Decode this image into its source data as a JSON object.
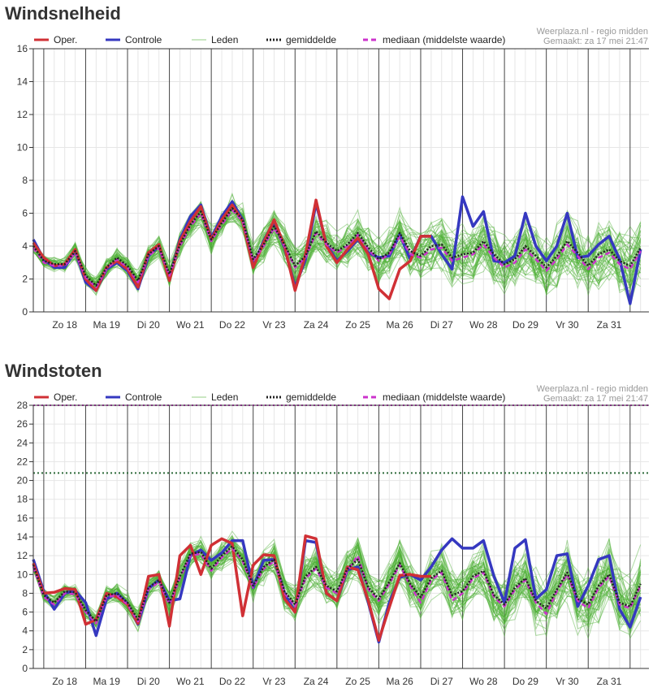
{
  "charts": [
    {
      "title": "Windsnelheid",
      "source": "Weerplaza.nl - regio midden",
      "made": "Gemaakt: za 17 mei 21:47",
      "legend": [
        "Oper.",
        "Controle",
        "Leden",
        "gemiddelde",
        "mediaan (middelste waarde)"
      ],
      "ylim": [
        0,
        16
      ],
      "yticks": [
        0,
        2,
        4,
        6,
        8,
        10,
        12,
        14,
        16
      ],
      "day_labels": [
        "Zo 18",
        "Ma 19",
        "Di 20",
        "Wo 21",
        "Do 22",
        "Vr 23",
        "Za 24",
        "Zo 25",
        "Ma 26",
        "Di 27",
        "Wo 28",
        "Do 29",
        "Vr 30",
        "Za 31"
      ],
      "threshold_lines": [],
      "chart_data": {
        "type": "line",
        "x_unit": "days since start",
        "series": [
          {
            "name": "Oper.",
            "x": [
              0,
              0.25,
              0.5,
              0.75,
              1,
              1.25,
              1.5,
              1.75,
              2,
              2.25,
              2.5,
              2.75,
              3,
              3.25,
              3.5,
              3.75,
              4,
              4.25,
              4.5,
              4.75,
              5,
              5.25,
              5.5,
              5.75,
              6,
              6.25,
              6.5,
              6.75,
              7,
              7.25,
              7.5,
              7.75,
              8,
              8.25,
              8.5,
              8.75,
              9,
              9.25,
              9.5
            ],
            "values": [
              4.2,
              3.3,
              2.8,
              2.9,
              3.8,
              2.0,
              1.3,
              2.7,
              3.1,
              2.6,
              1.5,
              3.6,
              4.1,
              1.9,
              4.3,
              5.5,
              6.4,
              4.4,
              5.6,
              6.5,
              5.5,
              2.7,
              4.2,
              5.6,
              4.0,
              1.3,
              3.5,
              6.8,
              4.0,
              3.0,
              3.8,
              4.5,
              3.5,
              1.4,
              0.8,
              2.6,
              3.1,
              4.6,
              4.6
            ]
          },
          {
            "name": "Controle",
            "x": [
              0,
              0.25,
              0.5,
              0.75,
              1,
              1.25,
              1.5,
              1.75,
              2,
              2.25,
              2.5,
              2.75,
              3,
              3.25,
              3.5,
              3.75,
              4,
              4.25,
              4.5,
              4.75,
              5,
              5.25,
              5.5,
              5.75,
              6,
              6.25,
              6.5,
              6.75,
              7,
              7.25,
              7.5,
              7.75,
              8,
              8.25,
              8.5,
              8.75,
              9,
              9.25,
              9.5,
              9.75,
              10,
              10.25,
              10.5,
              10.75,
              11,
              11.25,
              11.5,
              11.75,
              12,
              12.25,
              12.5,
              12.75,
              13,
              13.25,
              13.5,
              13.75,
              14,
              14.25,
              14.5
            ],
            "values": [
              4.4,
              3.2,
              2.7,
              2.7,
              3.7,
              1.8,
              1.3,
              2.6,
              3.0,
              2.5,
              1.4,
              3.4,
              4.0,
              2.0,
              4.4,
              5.8,
              6.5,
              4.5,
              5.8,
              6.7,
              5.6,
              2.8,
              4.3,
              5.5,
              3.9,
              1.5,
              3.2,
              6.6,
              4.1,
              3.1,
              3.7,
              4.4,
              3.6,
              3.3,
              3.4,
              4.7,
              3.2,
              4.6,
              4.6,
              3.5,
              2.6,
              7.0,
              5.2,
              6.1,
              3.1,
              3.0,
              3.4,
              6.0,
              4.0,
              3.1,
              4.0,
              6.0,
              3.3,
              3.4,
              4.1,
              4.6,
              3.2,
              0.5,
              3.8
            ]
          },
          {
            "name": "gemiddelde",
            "x": [
              0,
              0.25,
              0.5,
              0.75,
              1,
              1.25,
              1.5,
              1.75,
              2,
              2.25,
              2.5,
              2.75,
              3,
              3.25,
              3.5,
              3.75,
              4,
              4.25,
              4.5,
              4.75,
              5,
              5.25,
              5.5,
              5.75,
              6,
              6.25,
              6.5,
              6.75,
              7,
              7.25,
              7.5,
              7.75,
              8,
              8.25,
              8.5,
              8.75,
              9,
              9.25,
              9.5,
              9.75,
              10,
              10.25,
              10.5,
              10.75,
              11,
              11.25,
              11.5,
              11.75,
              12,
              12.25,
              12.5,
              12.75,
              13,
              13.25,
              13.5,
              13.75,
              14,
              14.25,
              14.5
            ],
            "values": [
              4.0,
              3.1,
              2.9,
              2.9,
              3.7,
              2.2,
              1.6,
              2.7,
              3.3,
              2.8,
              1.9,
              3.5,
              4.0,
              2.3,
              4.1,
              5.3,
              6.1,
              4.4,
              5.4,
              6.3,
              5.6,
              3.2,
              4.1,
              5.2,
              4.1,
              2.8,
              3.4,
              4.9,
              4.2,
              3.7,
              4.1,
              4.8,
              3.9,
              3.2,
              3.6,
              4.8,
              3.7,
              3.4,
              4.0,
              4.1,
              3.3,
              3.5,
              3.6,
              4.3,
              3.5,
              2.9,
              3.2,
              4.0,
              3.4,
              2.7,
              3.4,
              4.3,
              3.6,
              2.8,
              3.5,
              3.8,
              3.1,
              2.8,
              3.9
            ]
          },
          {
            "name": "mediaan (middelste waarde)",
            "x": [
              0,
              0.25,
              0.5,
              0.75,
              1,
              1.25,
              1.5,
              1.75,
              2,
              2.25,
              2.5,
              2.75,
              3,
              3.25,
              3.5,
              3.75,
              4,
              4.25,
              4.5,
              4.75,
              5,
              5.25,
              5.5,
              5.75,
              6,
              6.25,
              6.5,
              6.75,
              7,
              7.25,
              7.5,
              7.75,
              8,
              8.25,
              8.5,
              8.75,
              9,
              9.25,
              9.5,
              9.75,
              10,
              10.25,
              10.5,
              10.75,
              11,
              11.25,
              11.5,
              11.75,
              12,
              12.25,
              12.5,
              12.75,
              13,
              13.25,
              13.5,
              13.75,
              14,
              14.25,
              14.5
            ],
            "values": [
              3.9,
              3.0,
              2.8,
              2.8,
              3.6,
              2.1,
              1.5,
              2.6,
              3.2,
              2.7,
              1.8,
              3.4,
              3.9,
              2.2,
              4.0,
              5.2,
              6.0,
              4.3,
              5.3,
              6.2,
              5.5,
              3.1,
              4.0,
              5.1,
              4.0,
              2.7,
              3.3,
              4.8,
              4.1,
              3.6,
              4.0,
              4.7,
              3.8,
              3.1,
              3.5,
              4.6,
              3.5,
              3.3,
              3.8,
              3.9,
              3.1,
              3.3,
              3.5,
              4.1,
              3.3,
              2.7,
              3.0,
              3.8,
              3.2,
              2.5,
              3.2,
              4.1,
              3.4,
              2.6,
              3.3,
              3.6,
              2.9,
              2.6,
              3.7
            ]
          }
        ]
      }
    },
    {
      "title": "Windstoten",
      "source": "Weerplaza.nl - regio midden",
      "made": "Gemaakt: za 17 mei 21:47",
      "legend": [
        "Oper.",
        "Controle",
        "Leden",
        "gemiddelde",
        "mediaan (middelste waarde)"
      ],
      "ylim": [
        0,
        28
      ],
      "yticks": [
        0,
        2,
        4,
        6,
        8,
        10,
        12,
        14,
        16,
        18,
        20,
        22,
        24,
        26,
        28
      ],
      "day_labels": [
        "Zo 18",
        "Ma 19",
        "Di 20",
        "Wo 21",
        "Do 22",
        "Vr 23",
        "Za 24",
        "Zo 25",
        "Ma 26",
        "Di 27",
        "Wo 28",
        "Do 29",
        "Vr 30",
        "Za 31"
      ],
      "threshold_lines": [
        {
          "value": 28,
          "color": "#cc33cc"
        },
        {
          "value": 20.8,
          "color": "#2e6b3a"
        }
      ],
      "chart_data": {
        "type": "line",
        "x_unit": "days since start",
        "series": [
          {
            "name": "Oper.",
            "x": [
              0,
              0.25,
              0.5,
              0.75,
              1,
              1.25,
              1.5,
              1.75,
              2,
              2.25,
              2.5,
              2.75,
              3,
              3.25,
              3.5,
              3.75,
              4,
              4.25,
              4.5,
              4.75,
              5,
              5.25,
              5.5,
              5.75,
              6,
              6.25,
              6.5,
              6.75,
              7,
              7.25,
              7.5,
              7.75,
              8,
              8.25,
              8.5,
              8.75,
              9,
              9.25,
              9.5
            ],
            "values": [
              11.2,
              8.0,
              8.1,
              8.5,
              8.4,
              4.7,
              5.2,
              8.0,
              7.6,
              6.8,
              4.8,
              9.8,
              10.0,
              4.5,
              12.0,
              13.1,
              10.0,
              13.1,
              13.8,
              13.3,
              5.6,
              11.0,
              12.1,
              12.0,
              7.4,
              6.0,
              14.1,
              13.8,
              8.0,
              7.2,
              10.8,
              10.5,
              7.2,
              3.0,
              6.5,
              9.9,
              10.0,
              9.8,
              9.8
            ]
          },
          {
            "name": "Controle",
            "x": [
              0,
              0.25,
              0.5,
              0.75,
              1,
              1.25,
              1.5,
              1.75,
              2,
              2.25,
              2.5,
              2.75,
              3,
              3.25,
              3.5,
              3.75,
              4,
              4.25,
              4.5,
              4.75,
              5,
              5.25,
              5.5,
              5.75,
              6,
              6.25,
              6.5,
              6.75,
              7,
              7.25,
              7.5,
              7.75,
              8,
              8.25,
              8.5,
              8.75,
              9,
              9.25,
              9.5,
              9.75,
              10,
              10.25,
              10.5,
              10.75,
              11,
              11.25,
              11.5,
              11.75,
              12,
              12.25,
              12.5,
              12.75,
              13,
              13.25,
              13.5,
              13.75,
              14,
              14.25,
              14.5
            ],
            "values": [
              11.6,
              8.2,
              6.3,
              8.0,
              8.3,
              7.0,
              3.5,
              7.4,
              8.0,
              6.9,
              4.7,
              8.5,
              9.4,
              7.2,
              7.4,
              12.0,
              12.6,
              11.5,
              12.3,
              13.6,
              13.6,
              8.6,
              11.5,
              11.6,
              8.0,
              6.0,
              13.6,
              13.4,
              8.0,
              7.2,
              10.5,
              10.8,
              7.0,
              2.8,
              7.0,
              9.7,
              10.0,
              9.4,
              10.8,
              12.6,
              13.8,
              12.8,
              12.8,
              13.6,
              9.8,
              7.0,
              12.8,
              13.7,
              7.4,
              8.4,
              12.0,
              12.2,
              6.6,
              8.8,
              11.6,
              12.0,
              6.3,
              4.4,
              7.6
            ]
          },
          {
            "name": "gemiddelde",
            "x": [
              0,
              0.25,
              0.5,
              0.75,
              1,
              1.25,
              1.5,
              1.75,
              2,
              2.25,
              2.5,
              2.75,
              3,
              3.25,
              3.5,
              3.75,
              4,
              4.25,
              4.5,
              4.75,
              5,
              5.25,
              5.5,
              5.75,
              6,
              6.25,
              6.5,
              6.75,
              7,
              7.25,
              7.5,
              7.75,
              8,
              8.25,
              8.5,
              8.75,
              9,
              9.25,
              9.5,
              9.75,
              10,
              10.25,
              10.5,
              10.75,
              11,
              11.25,
              11.5,
              11.75,
              12,
              12.25,
              12.5,
              12.75,
              13,
              13.25,
              13.5,
              13.75,
              14,
              14.25,
              14.5
            ],
            "values": [
              11.0,
              7.8,
              7.0,
              8.2,
              8.1,
              6.2,
              5.0,
              7.8,
              8.0,
              7.0,
              5.2,
              8.6,
              9.4,
              7.0,
              9.8,
              12.2,
              12.4,
              10.6,
              12.0,
              13.0,
              11.6,
              8.8,
              10.8,
              11.6,
              8.2,
              6.8,
              9.8,
              10.8,
              8.8,
              8.2,
              10.6,
              11.6,
              8.6,
              7.4,
              9.2,
              11.2,
              9.0,
              7.6,
              9.6,
              10.4,
              7.8,
              8.2,
              9.8,
              10.4,
              7.8,
              6.8,
              8.6,
              9.6,
              7.2,
              6.4,
              8.4,
              10.2,
              7.4,
              6.8,
              8.8,
              10.0,
              7.0,
              6.6,
              9.0
            ]
          },
          {
            "name": "mediaan (middelste waarde)",
            "x": [
              0,
              0.25,
              0.5,
              0.75,
              1,
              1.25,
              1.5,
              1.75,
              2,
              2.25,
              2.5,
              2.75,
              3,
              3.25,
              3.5,
              3.75,
              4,
              4.25,
              4.5,
              4.75,
              5,
              5.25,
              5.5,
              5.75,
              6,
              6.25,
              6.5,
              6.75,
              7,
              7.25,
              7.5,
              7.75,
              8,
              8.25,
              8.5,
              8.75,
              9,
              9.25,
              9.5,
              9.75,
              10,
              10.25,
              10.5,
              10.75,
              11,
              11.25,
              11.5,
              11.75,
              12,
              12.25,
              12.5,
              12.75,
              13,
              13.25,
              13.5,
              13.75,
              14,
              14.25,
              14.5
            ],
            "values": [
              10.8,
              7.6,
              6.8,
              8.0,
              7.9,
              6.0,
              4.8,
              7.6,
              7.8,
              6.8,
              5.0,
              8.4,
              9.2,
              6.8,
              9.6,
              12.0,
              12.2,
              10.4,
              11.8,
              12.8,
              11.4,
              8.6,
              10.6,
              11.4,
              8.0,
              6.6,
              9.6,
              10.6,
              8.6,
              8.0,
              10.4,
              12.0,
              8.4,
              7.2,
              9.0,
              11.0,
              8.8,
              7.0,
              9.4,
              10.2,
              7.2,
              8.0,
              9.6,
              10.2,
              7.6,
              6.6,
              8.4,
              9.4,
              7.0,
              5.8,
              8.2,
              10.0,
              7.2,
              6.4,
              8.6,
              9.8,
              6.8,
              6.4,
              8.8
            ]
          }
        ]
      }
    }
  ],
  "colors": {
    "oper": "#d03035",
    "controle": "#3538c0",
    "leden": "#4caf32",
    "gemiddelde": "#222222",
    "mediaan": "#cc33cc",
    "grid": "#e6e6e6",
    "dayline": "#444444",
    "meta": "#999999"
  }
}
